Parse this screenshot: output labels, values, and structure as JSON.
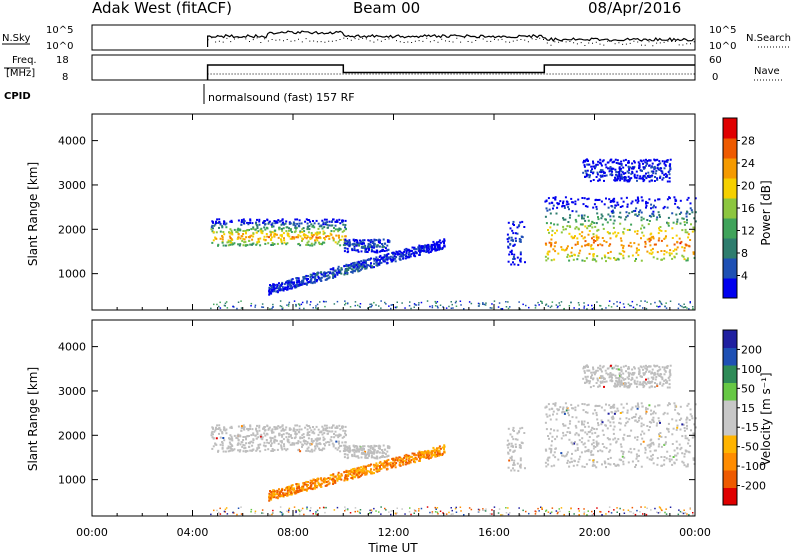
{
  "header": {
    "station": "Adak West (fitACF)",
    "beam": "Beam 00",
    "date": "08/Apr/2016"
  },
  "panel_labels": {
    "nsky": "N.Sky",
    "nsearch": "N.Search",
    "freq_line1": "Freq.",
    "freq_line2": "[MHz]",
    "nave": "Nave",
    "cpid": "CPID",
    "cpid_text": "normalsound (fast) 157 RF"
  },
  "colors": {
    "power": [
      "#0000ee",
      "#1e50b4",
      "#2e7d6e",
      "#3fa35a",
      "#8cc63f",
      "#f5d000",
      "#f59a00",
      "#ee5a00",
      "#e00000"
    ],
    "velocity": [
      "#e00000",
      "#ee5a00",
      "#ff8c00",
      "#ffb400",
      "#c8c8c8",
      "#c8c8c8",
      "#66c844",
      "#2e8b57",
      "#1e50b4",
      "#2020a0"
    ],
    "ground_scatter": "#bebebe"
  },
  "chart_data": [
    {
      "type": "line",
      "name": "noise",
      "x_range": [
        0,
        24
      ],
      "series_label_left": "N.Sky",
      "series_label_right": "N.Search",
      "left_ticks": [
        "10^5",
        "10^0"
      ],
      "right_ticks": [
        "10^5",
        "10^0"
      ],
      "start_hour": 4.6,
      "level_early": 0.55,
      "level_late": 0.42,
      "late_after": 18
    },
    {
      "type": "line",
      "name": "frequency",
      "x_range": [
        0,
        24
      ],
      "left_ticks": [
        "18",
        "8"
      ],
      "right_ticks": [
        "60",
        "0"
      ],
      "ylim": [
        8,
        18
      ],
      "segments": [
        {
          "start": 4.6,
          "end": 10.0,
          "freq": 14
        },
        {
          "start": 10.0,
          "end": 18.0,
          "freq": 11
        },
        {
          "start": 18.0,
          "end": 24.0,
          "freq": 14
        }
      ]
    },
    {
      "type": "heatmap",
      "name": "power",
      "xlabel": "",
      "ylabel": "Slant Range [km]",
      "x_range": [
        0,
        24
      ],
      "ylim": [
        180,
        4600
      ],
      "yticks": [
        1000,
        2000,
        3000,
        4000
      ],
      "colorbar_label": "Power [dB]",
      "colorbar_ticks": [
        "28",
        "24",
        "20",
        "16",
        "12",
        "8",
        "4"
      ],
      "colorbar_range": [
        0,
        32
      ]
    },
    {
      "type": "heatmap",
      "name": "velocity",
      "xlabel": "Time UT",
      "ylabel": "Slant Range [km]",
      "x_range": [
        0,
        24
      ],
      "ylim": [
        180,
        4600
      ],
      "yticks": [
        1000,
        2000,
        3000,
        4000
      ],
      "xticks": [
        "00:00",
        "04:00",
        "08:00",
        "12:00",
        "16:00",
        "20:00",
        "00:00"
      ],
      "colorbar_label": "Velocity [m s⁻¹]",
      "colorbar_ticks": [
        "200",
        "100",
        "50",
        "15",
        "-15",
        "-50",
        "-100",
        "-200"
      ]
    }
  ],
  "scatter_regions": [
    {
      "hours": [
        4.7,
        10.1
      ],
      "range": [
        1650,
        2250
      ],
      "center_range": 1850,
      "power": 24,
      "vel_class": "ground"
    },
    {
      "hours": [
        10.0,
        11.8
      ],
      "range": [
        1500,
        1800
      ],
      "center_range": 1650,
      "power": 6,
      "vel_class": "ground"
    },
    {
      "hours": [
        7.0,
        14.0
      ],
      "range": [
        650,
        1700
      ],
      "center_range": 1100,
      "power": 6,
      "vel_class": "negative"
    },
    {
      "hours": [
        18.0,
        24.0
      ],
      "range": [
        1300,
        2750
      ],
      "center_range": 1700,
      "power": 26,
      "vel_class": "ground"
    },
    {
      "hours": [
        16.5,
        17.2
      ],
      "range": [
        1200,
        2200
      ],
      "center_range": 1700,
      "power": 4,
      "vel_class": "ground"
    },
    {
      "hours": [
        19.5,
        23.0
      ],
      "range": [
        3100,
        3600
      ],
      "center_range": 3300,
      "power": 4,
      "vel_class": "ground"
    }
  ]
}
